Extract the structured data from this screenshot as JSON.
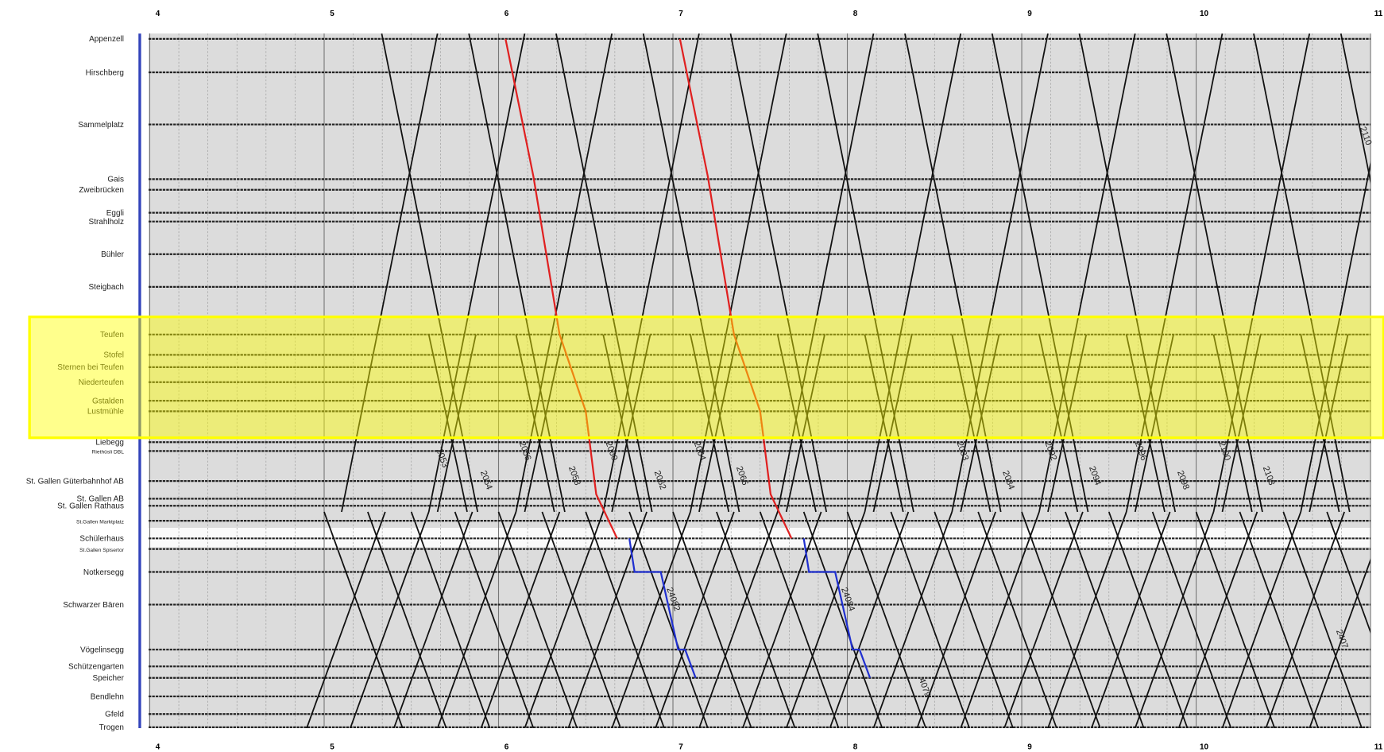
{
  "chart_data": {
    "type": "train-graph",
    "hours": [
      4,
      5,
      6,
      7,
      8,
      9,
      10,
      11
    ],
    "stations": [
      "Appenzell",
      "Hirschberg",
      "Sammelplatz",
      "Gais",
      "Zweibrücken",
      "Eggli",
      "Strahlholz",
      "Bühler",
      "Steigbach",
      "Teufen",
      "Stofel",
      "Sternen bei Teufen",
      "Niederteufen",
      "Gstalden",
      "Lustmühle",
      "Liebegg",
      "Riethüsli DBL",
      "St. Gallen Güterbahnhof AB",
      "St. Gallen AB",
      "St. Gallen Rathaus",
      "St.Gallen Marktplatz",
      "Schülerhaus",
      "St.Gallen Spisertor",
      "Notkersegg",
      "Schwarzer Bären",
      "Vögelinsegg",
      "Schützengarten",
      "Speicher",
      "Bendlehn",
      "Gfeld",
      "Trogen"
    ],
    "train_numbers": [
      "2053",
      "2054",
      "2056",
      "2058",
      "2060",
      "2062",
      "2064",
      "2066",
      "2083",
      "2084",
      "2092",
      "2094",
      "2096",
      "2098",
      "2100",
      "2103",
      "2110",
      "2407",
      "4079",
      "24082",
      "24084"
    ]
  }
}
